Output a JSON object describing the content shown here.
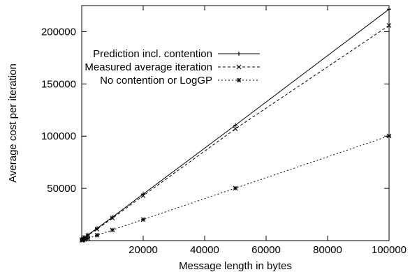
{
  "chart_data": {
    "type": "line",
    "title": "",
    "xlabel": "Message length in bytes",
    "ylabel": "Average cost per iteration",
    "xlim": [
      0,
      100000
    ],
    "ylim": [
      0,
      225000
    ],
    "xticks": [
      20000,
      40000,
      60000,
      80000,
      100000
    ],
    "xtick_labels": [
      "20000",
      "40000",
      "60000",
      "80000",
      "100000"
    ],
    "yticks": [
      50000,
      100000,
      150000,
      200000
    ],
    "ytick_labels": [
      "50000",
      "100000",
      "150000",
      "200000"
    ],
    "grid": false,
    "legend_position": "top-left",
    "series": [
      {
        "name": "Prediction incl. contention",
        "line_style": "solid",
        "marker": "plus",
        "x": [
          100,
          500,
          1000,
          2000,
          5000,
          10000,
          20000,
          50000,
          100000
        ],
        "y": [
          1000,
          2000,
          3200,
          5400,
          11800,
          22500,
          44500,
          110500,
          221500
        ]
      },
      {
        "name": "Measured average iteration",
        "line_style": "dashed",
        "marker": "cross",
        "x": [
          100,
          500,
          1000,
          2000,
          5000,
          10000,
          20000,
          50000,
          100000
        ],
        "y": [
          900,
          1800,
          3000,
          5000,
          11000,
          21500,
          43000,
          107000,
          206000
        ]
      },
      {
        "name": "No contention or LogGP",
        "line_style": "dotted",
        "marker": "star",
        "x": [
          100,
          500,
          1000,
          2000,
          5000,
          10000,
          20000,
          50000,
          100000
        ],
        "y": [
          300,
          700,
          1200,
          2200,
          5200,
          10200,
          20200,
          50200,
          100200
        ]
      }
    ]
  }
}
